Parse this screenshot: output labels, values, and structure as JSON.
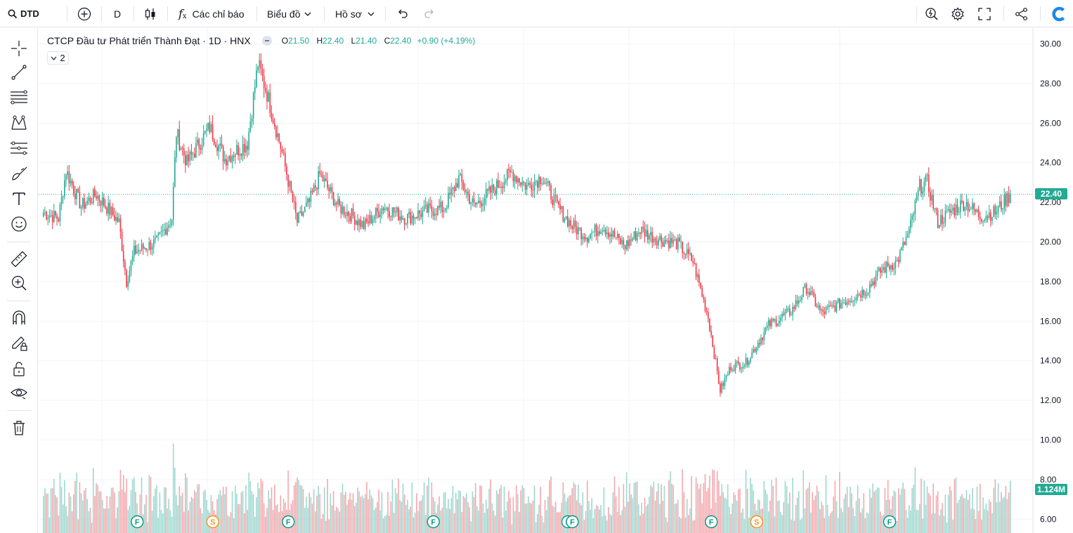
{
  "toolbar": {
    "symbol": "DTD",
    "interval": "D",
    "indicators_label": "Các chỉ báo",
    "chart_label": "Biểu đồ",
    "profile_label": "Hồ sơ"
  },
  "legend": {
    "title": "CTCP Đầu tư Phát triển Thành Đạt · 1D · HNX",
    "o_label": "O",
    "o_value": "21.50",
    "h_label": "H",
    "h_value": "22.40",
    "l_label": "L",
    "l_value": "21.40",
    "c_label": "C",
    "c_value": "22.40",
    "change": "+0.90 (+4.19%)",
    "collapse_count": "2"
  },
  "price_tag": {
    "last_price": "22.40",
    "volume_last": "1.124M"
  },
  "colors": {
    "up": "#22ab94",
    "down": "#f23645",
    "up_vol": "#9fd8d0",
    "down_vol": "#f5a8ae",
    "earnings_f": "#089981",
    "split_s": "#f7931a"
  },
  "chart_data": {
    "type": "candlestick",
    "y_ticks": [
      "30.00",
      "28.00",
      "26.00",
      "24.00",
      "22.00",
      "20.00",
      "18.00",
      "16.00",
      "14.00",
      "12.00",
      "10.00",
      "8.00",
      "6.00"
    ],
    "ylim": [
      5.3,
      30.8
    ],
    "last_close": 22.4,
    "anchors": [
      [
        0,
        21.5
      ],
      [
        10,
        21.2
      ],
      [
        15,
        23.6
      ],
      [
        25,
        21.8
      ],
      [
        35,
        22.4
      ],
      [
        50,
        21.0
      ],
      [
        55,
        18.0
      ],
      [
        60,
        19.5
      ],
      [
        75,
        20.0
      ],
      [
        85,
        21.2
      ],
      [
        88,
        25.5
      ],
      [
        95,
        24.0
      ],
      [
        110,
        25.8
      ],
      [
        120,
        24.2
      ],
      [
        135,
        25.0
      ],
      [
        142,
        29.0
      ],
      [
        148,
        27.5
      ],
      [
        158,
        24.5
      ],
      [
        168,
        21.0
      ],
      [
        176,
        22.0
      ],
      [
        183,
        23.4
      ],
      [
        195,
        21.8
      ],
      [
        205,
        21.3
      ],
      [
        212,
        20.8
      ],
      [
        225,
        21.8
      ],
      [
        240,
        21.2
      ],
      [
        255,
        21.6
      ],
      [
        265,
        21.7
      ],
      [
        275,
        23.2
      ],
      [
        285,
        21.8
      ],
      [
        300,
        22.8
      ],
      [
        310,
        23.5
      ],
      [
        320,
        22.8
      ],
      [
        330,
        23.3
      ],
      [
        340,
        21.8
      ],
      [
        350,
        20.8
      ],
      [
        360,
        20.3
      ],
      [
        370,
        20.8
      ],
      [
        385,
        19.8
      ],
      [
        395,
        20.6
      ],
      [
        405,
        20.2
      ],
      [
        420,
        19.9
      ],
      [
        430,
        19.0
      ],
      [
        440,
        16.2
      ],
      [
        448,
        12.5
      ],
      [
        455,
        13.7
      ],
      [
        465,
        13.9
      ],
      [
        480,
        15.8
      ],
      [
        495,
        16.5
      ],
      [
        505,
        17.7
      ],
      [
        515,
        16.4
      ],
      [
        525,
        16.8
      ],
      [
        535,
        17.2
      ],
      [
        545,
        17.6
      ],
      [
        555,
        18.6
      ],
      [
        565,
        19.0
      ],
      [
        573,
        20.5
      ],
      [
        580,
        22.8
      ],
      [
        585,
        23.0
      ],
      [
        592,
        21.0
      ],
      [
        600,
        21.5
      ],
      [
        610,
        22.0
      ],
      [
        620,
        21.3
      ],
      [
        630,
        21.5
      ],
      [
        640,
        22.4
      ]
    ],
    "volume_markers": [
      {
        "label": "F",
        "x_index": 62
      },
      {
        "label": "S",
        "x_index": 112
      },
      {
        "label": "F",
        "x_index": 162
      },
      {
        "label": "F",
        "x_index": 258
      },
      {
        "label": "F",
        "x_index": 347
      },
      {
        "label": "F",
        "x_index": 350
      },
      {
        "label": "F",
        "x_index": 442
      },
      {
        "label": "S",
        "x_index": 472
      },
      {
        "label": "F",
        "x_index": 560
      }
    ]
  }
}
